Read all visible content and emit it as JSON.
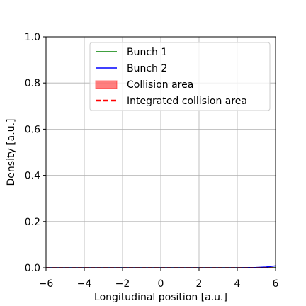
{
  "chart_data": {
    "type": "line",
    "xlabel": "Longitudinal position [a.u.]",
    "ylabel": "Density [a.u.]",
    "x": [
      -6,
      -5,
      -4,
      -3,
      -2,
      -1,
      0,
      1,
      2,
      3,
      4,
      5,
      5.5,
      6
    ],
    "series": [
      {
        "name": "Bunch 1",
        "color": "#008000",
        "kind": "line",
        "values": [
          0,
          0,
          0,
          0,
          0,
          0,
          0,
          0,
          0,
          0,
          0,
          0,
          0,
          0
        ]
      },
      {
        "name": "Bunch 2",
        "color": "#0000ff",
        "kind": "line",
        "values": [
          0,
          0,
          0,
          0,
          0,
          0,
          0,
          0,
          0,
          0,
          0,
          0.001,
          0.003,
          0.008
        ]
      },
      {
        "name": "Collision area",
        "color": "#ff0000",
        "kind": "area",
        "values": [
          0,
          0,
          0,
          0,
          0,
          0,
          0,
          0,
          0,
          0,
          0,
          0,
          0,
          0
        ]
      },
      {
        "name": "Integrated collision area",
        "color": "#ff0000",
        "kind": "dashed",
        "values": [
          0,
          0,
          0,
          0,
          0,
          0,
          0,
          0,
          0,
          0,
          0,
          0,
          0,
          0
        ]
      }
    ],
    "xlim": [
      -6,
      6
    ],
    "xticks": [
      {
        "value": -6,
        "label": "−6"
      },
      {
        "value": -4,
        "label": "−4"
      },
      {
        "value": -2,
        "label": "−2"
      },
      0,
      2,
      4,
      6
    ],
    "ylim": [
      0,
      1
    ],
    "yticks": [
      {
        "value": 0,
        "label": "0.0"
      },
      0.2,
      0.4,
      0.6,
      0.8,
      {
        "value": 1,
        "label": "1.0"
      }
    ],
    "grid": true,
    "legend": "upper center"
  }
}
